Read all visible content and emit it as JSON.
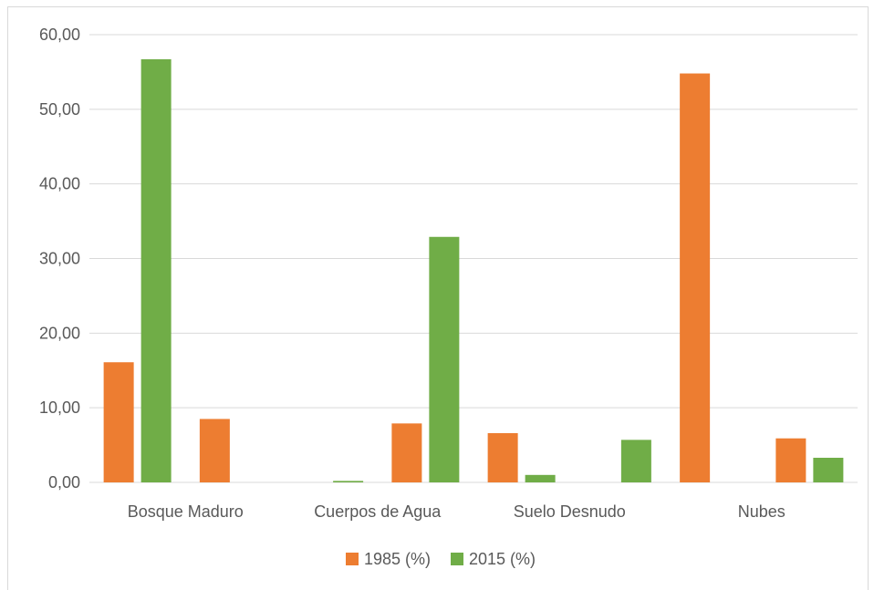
{
  "chart_data": {
    "type": "bar",
    "categories": [
      "Bosque Maduro",
      "",
      "Cuerpos de Agua",
      "",
      "Suelo Desnudo",
      "",
      "Nubes",
      ""
    ],
    "series": [
      {
        "name": "1985 (%)",
        "color": "#ed7d31",
        "values": [
          16.1,
          8.5,
          0.0,
          7.9,
          6.6,
          0.0,
          54.8,
          5.9
        ]
      },
      {
        "name": "2015 (%)",
        "color": "#70ad47",
        "values": [
          56.7,
          0.0,
          0.2,
          32.9,
          1.0,
          5.7,
          0.0,
          3.3
        ]
      }
    ],
    "ylim": [
      0,
      60
    ],
    "yticks": [
      "0,00",
      "10,00",
      "20,00",
      "30,00",
      "40,00",
      "50,00",
      "60,00"
    ],
    "grid": true,
    "legend": "bottom",
    "gridline_color": "#d9d9d9"
  }
}
